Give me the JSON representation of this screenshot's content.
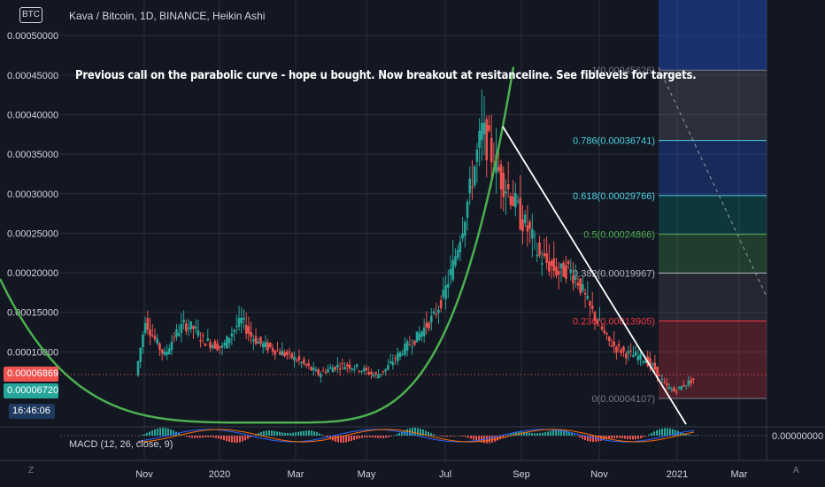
{
  "chart_data": {
    "type": "candlestick",
    "title": "Kava / Bitcoin, 1D, BINANCE, Heikin Ashi",
    "symbol_badge": "BTC",
    "annotation": "Previous call on the parabolic curve - hope u bought. Now breakout at resitanceline. See fiblevels for targets.",
    "y_ticks": [
      "0.00050000",
      "0.00045000",
      "0.00040000",
      "0.00035000",
      "0.00030000",
      "0.00025000",
      "0.00020000",
      "0.00015000",
      "0.00010000"
    ],
    "y_tick_values": [
      0.0005,
      0.00045,
      0.0004,
      0.00035,
      0.0003,
      0.00025,
      0.0002,
      0.00015,
      0.0001
    ],
    "x_ticks": [
      "Nov",
      "2020",
      "Mar",
      "May",
      "Jul",
      "Sep",
      "Nov",
      "2021",
      "Mar"
    ],
    "ylim": [
      7.5e-06,
      0.000545
    ],
    "current_price_red": "0.00006869",
    "current_price_green": "0.00006720",
    "countdown": "16:46:06",
    "fib_levels": [
      {
        "label": "1(0.00045626)",
        "value": 0.00045626,
        "color": "#787b86"
      },
      {
        "label": "0.786(0.00036741)",
        "value": 0.00036741,
        "color": "#4dd0e1"
      },
      {
        "label": "0.618(0.00029766)",
        "value": 0.00029766,
        "color": "#4dd0e1"
      },
      {
        "label": "0.5(0.00024866)",
        "value": 0.00024866,
        "color": "#4caf50"
      },
      {
        "label": "0.382(0.00019967)",
        "value": 0.00019967,
        "color": "#b2b5be"
      },
      {
        "label": "0.236(0.00013905)",
        "value": 0.00013905,
        "color": "#f23645"
      },
      {
        "label": "0(0.00004107)",
        "value": 4.107e-05,
        "color": "#787b86"
      }
    ],
    "close_series": [
      7e-05,
      0.00014,
      0.000115,
      9.5e-05,
      0.00012,
      0.000135,
      0.00013,
      0.000115,
      0.00011,
      0.000105,
      0.000125,
      0.00014,
      0.00012,
      0.00011,
      0.000105,
      0.0001,
      9.5e-05,
      8.8e-05,
      8e-05,
      7.2e-05,
      7.8e-05,
      8.2e-05,
      8.3e-05,
      8e-05,
      7.5e-05,
      7e-05,
      7.8e-05,
      9.2e-05,
      0.000105,
      0.000115,
      0.00013,
      0.000145,
      0.00017,
      0.00021,
      0.00026,
      0.00032,
      0.00038,
      0.00035,
      0.00032,
      0.0003,
      0.00027,
      0.00025,
      0.00022,
      0.00021,
      0.0002,
      0.000205,
      0.00019,
      0.00016,
      0.00014,
      0.000115,
      0.000105,
      9.8e-05,
      9.5e-05,
      9e-05,
      7.8e-05,
      5.8e-05,
      5e-05,
      5.8e-05,
      6.5e-05
    ],
    "macd": {
      "label": "MACD (12, 26, close, 9)",
      "right_value": "0.00000000"
    }
  },
  "ui": {
    "left_bottom": "Z",
    "right_bottom": "A"
  }
}
